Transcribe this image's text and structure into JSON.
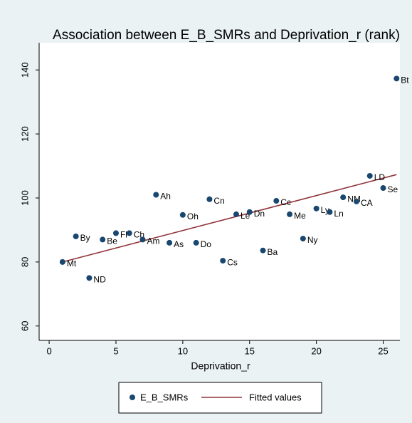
{
  "chart_data": {
    "type": "scatter",
    "title": "Association between E_B_SMRs and Deprivation_r (rank)",
    "x_label": "Deprivation_r",
    "series": [
      {
        "name": "E_B_SMRs",
        "color": "#1a476f",
        "x": [
          1,
          2,
          3,
          4,
          5,
          6,
          7,
          8,
          9,
          10,
          11,
          12,
          13,
          14,
          15,
          16,
          17,
          18,
          19,
          20,
          21,
          22,
          23,
          24,
          25,
          26
        ],
        "values": [
          80,
          88,
          75,
          87,
          89,
          89,
          87,
          101,
          86,
          94.7,
          86,
          99.6,
          80.4,
          94.9,
          95.6,
          83.6,
          99.1,
          94.9,
          87.3,
          96.7,
          95.6,
          100.2,
          98.9,
          106.9,
          103.1,
          137.3
        ],
        "labels": [
          "Mt",
          "By",
          "ND",
          "Be",
          "Fl",
          "Ch",
          "Am",
          "Ah",
          "As",
          "Oh",
          "Do",
          "Cn",
          "Cs",
          "Le",
          "Dn",
          "Ba",
          "Cc",
          "Me",
          "Ny",
          "Ly",
          "Ln",
          "NM",
          "CA",
          "LD",
          "Se",
          "Bt"
        ]
      }
    ],
    "fit": {
      "name": "Fitted values",
      "color": "#90353b",
      "x": [
        1,
        26
      ],
      "values": [
        80,
        107.3
      ]
    },
    "xlim": [
      -0.75,
      26.25
    ],
    "xticks": [
      0,
      5,
      10,
      15,
      20,
      25
    ],
    "ylim": [
      55.5,
      148.5
    ],
    "yticks": [
      60,
      80,
      100,
      120,
      140
    ]
  }
}
